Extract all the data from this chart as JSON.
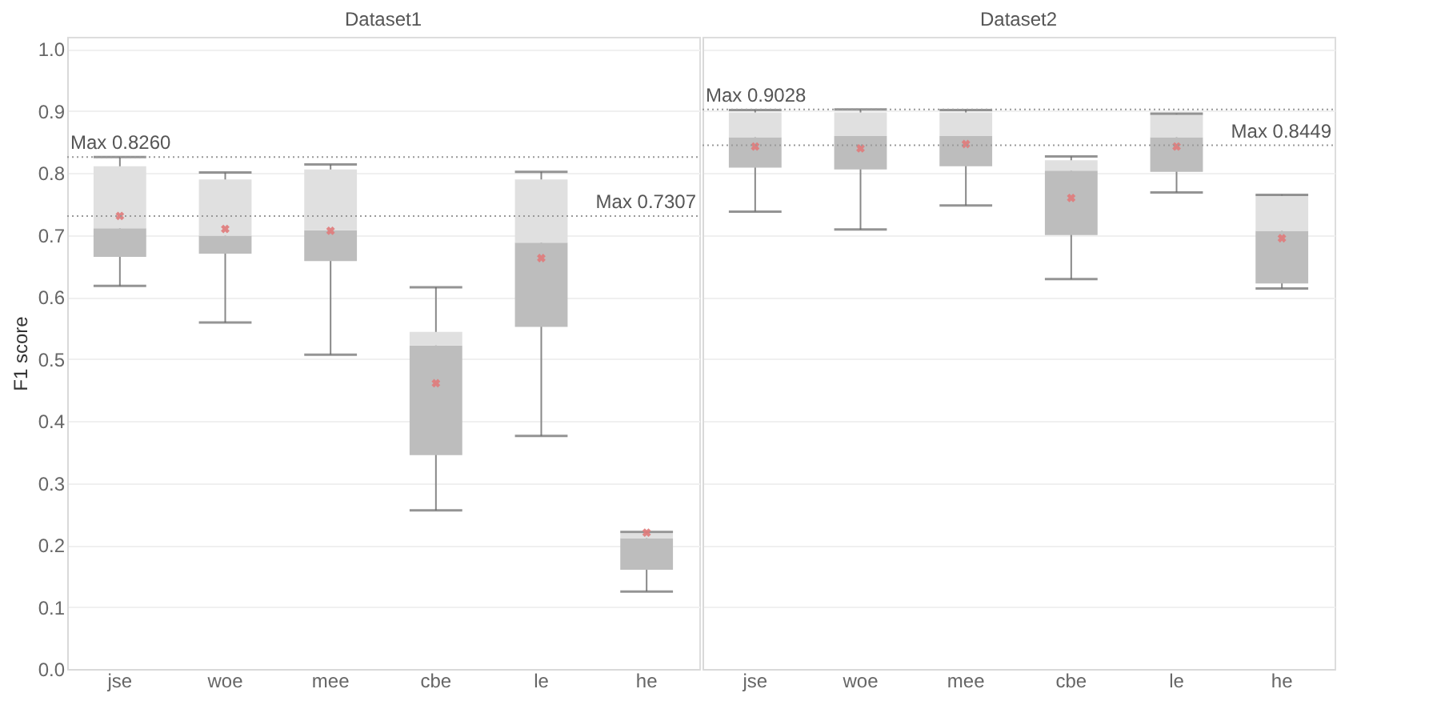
{
  "chart_data": [
    {
      "type": "box",
      "title": "Dataset1",
      "ylabel": "F1 score",
      "categories": [
        "jse",
        "woe",
        "mee",
        "cbe",
        "le",
        "he"
      ],
      "boxes": [
        {
          "low": 0.618,
          "q1": 0.665,
          "median": 0.711,
          "q3": 0.811,
          "high": 0.826,
          "mean": 0.731
        },
        {
          "low": 0.559,
          "q1": 0.67,
          "median": 0.699,
          "q3": 0.79,
          "high": 0.801,
          "mean": 0.71
        },
        {
          "low": 0.507,
          "q1": 0.658,
          "median": 0.708,
          "q3": 0.806,
          "high": 0.814,
          "mean": 0.707
        },
        {
          "low": 0.256,
          "q1": 0.345,
          "median": 0.522,
          "q3": 0.544,
          "high": 0.616,
          "mean": 0.461
        },
        {
          "low": 0.376,
          "q1": 0.552,
          "median": 0.688,
          "q3": 0.79,
          "high": 0.802,
          "mean": 0.663
        },
        {
          "low": 0.125,
          "q1": 0.16,
          "median": 0.211,
          "q3": 0.219,
          "high": 0.221,
          "mean": 0.22
        }
      ],
      "ylim": [
        0,
        1.02
      ],
      "yticks": [
        {
          "value": 0,
          "label": "0.0"
        },
        0.1,
        0.2,
        0.3,
        0.4,
        0.5,
        0.6,
        0.7,
        0.8,
        0.9,
        {
          "value": 1,
          "label": "1.0"
        }
      ],
      "grid": "y",
      "ref_lines": [
        {
          "axis": "y",
          "value": 0.826,
          "label": "Max 0.8260",
          "line_style": "dotted"
        },
        {
          "axis": "y",
          "value": 0.7307,
          "label": "Max 0.7307",
          "line_style": "dotted"
        }
      ]
    },
    {
      "type": "box",
      "title": "Dataset2",
      "categories": [
        "jse",
        "woe",
        "mee",
        "cbe",
        "le",
        "he"
      ],
      "boxes": [
        {
          "low": 0.738,
          "q1": 0.809,
          "median": 0.858,
          "q3": 0.898,
          "high": 0.902,
          "mean": 0.843
        },
        {
          "low": 0.709,
          "q1": 0.806,
          "median": 0.86,
          "q3": 0.898,
          "high": 0.9028,
          "mean": 0.84
        },
        {
          "low": 0.748,
          "q1": 0.811,
          "median": 0.86,
          "q3": 0.898,
          "high": 0.902,
          "mean": 0.847
        },
        {
          "low": 0.629,
          "q1": 0.7,
          "median": 0.804,
          "q3": 0.821,
          "high": 0.827,
          "mean": 0.76
        },
        {
          "low": 0.769,
          "q1": 0.802,
          "median": 0.858,
          "q3": 0.895,
          "high": 0.896,
          "mean": 0.843
        },
        {
          "low": 0.614,
          "q1": 0.622,
          "median": 0.707,
          "q3": 0.764,
          "high": 0.765,
          "mean": 0.695
        }
      ],
      "ylim": [
        0,
        1.02
      ],
      "yticks": [
        0,
        0.1,
        0.2,
        0.3,
        0.4,
        0.5,
        0.6,
        0.7,
        0.8,
        0.9,
        1.0
      ],
      "grid": "y",
      "tick_labels": "x",
      "ref_lines": [
        {
          "axis": "y",
          "value": 0.9028,
          "label": "Max 0.9028",
          "line_style": "dotted"
        },
        {
          "axis": "y",
          "value": 0.8449,
          "label": "Max 0.8449",
          "line_style": "dotted"
        }
      ]
    }
  ]
}
